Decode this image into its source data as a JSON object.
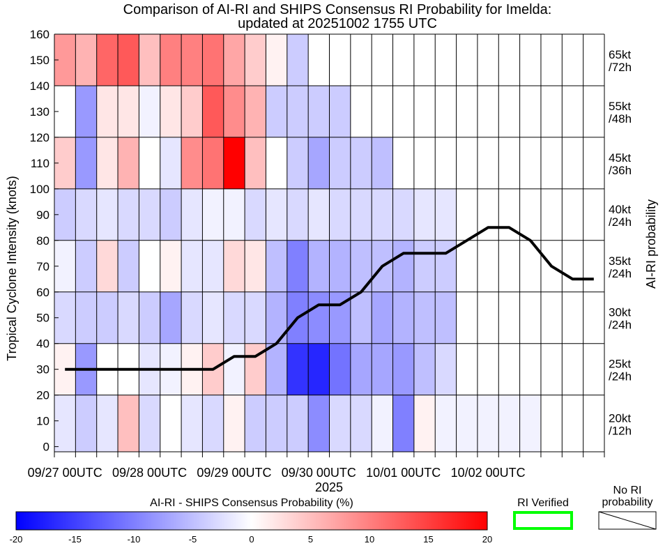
{
  "chart_data": {
    "type": "heatmap",
    "title": "Comparison of AI-RI and SHIPS Consensus RI Probability for Imelda:",
    "subtitle": "updated at 20251002 1755 UTC",
    "ylabel": "Tropical Cyclone Intensity (knots)",
    "xlabel": "2025",
    "right_label": "AI-RI probability",
    "ylim": [
      0,
      160
    ],
    "yticks": [
      0,
      10,
      20,
      30,
      40,
      50,
      60,
      70,
      80,
      90,
      100,
      110,
      120,
      130,
      140,
      150,
      160
    ],
    "xtick_labels": [
      "09/27 00UTC",
      "09/28 00UTC",
      "09/29 00UTC",
      "09/30 00UTC",
      "10/01 00UTC",
      "10/02 00UTC"
    ],
    "n_times": 26,
    "bands": [
      {
        "label": "20kt\n/12h",
        "ymin": -2,
        "ymax": 20
      },
      {
        "label": "25kt\n/24h",
        "ymin": 20,
        "ymax": 40
      },
      {
        "label": "30kt\n/24h",
        "ymin": 40,
        "ymax": 60
      },
      {
        "label": "35kt\n/24h",
        "ymin": 60,
        "ymax": 80
      },
      {
        "label": "40kt\n/24h",
        "ymin": 80,
        "ymax": 100
      },
      {
        "label": "45kt\n/36h",
        "ymin": 100,
        "ymax": 120
      },
      {
        "label": "55kt\n/48h",
        "ymin": 120,
        "ymax": 140
      },
      {
        "label": "65kt\n/72h",
        "ymin": 140,
        "ymax": 160
      }
    ],
    "probability_diff": [
      [
        -2,
        -4,
        -2,
        5,
        -3,
        0,
        -2,
        -3,
        1,
        -4,
        -4,
        -4,
        -9,
        -3,
        -3,
        -1,
        -10,
        1,
        -1,
        -1,
        -1,
        -1,
        -1,
        null,
        null,
        null
      ],
      [
        1,
        -8,
        0,
        0,
        -2,
        -1,
        1,
        4,
        -1,
        4,
        -6,
        -16,
        -17,
        -11,
        -7,
        -7,
        -8,
        -5,
        -3,
        null,
        null,
        null,
        null,
        null,
        null,
        null
      ],
      [
        -3,
        -4,
        -4,
        -3,
        -4,
        -7,
        -3,
        -2,
        -3,
        -3,
        -6,
        -10,
        -9,
        -8,
        -5,
        -7,
        -6,
        -5,
        -5,
        null,
        null,
        null,
        null,
        null,
        null,
        null
      ],
      [
        -1,
        -4,
        3,
        -4,
        0,
        1,
        -2,
        -2,
        3,
        2,
        -5,
        -10,
        -6,
        -6,
        -5,
        -5,
        -6,
        -4,
        -4,
        null,
        null,
        null,
        null,
        null,
        null,
        null
      ],
      [
        -4,
        -3,
        -2,
        -3,
        -3,
        -4,
        -2,
        -1,
        -1,
        -3,
        -2,
        -3,
        -2,
        -3,
        -3,
        -3,
        -3,
        -2,
        -2,
        null,
        null,
        null,
        null,
        null,
        null,
        null
      ],
      [
        4,
        -8,
        2,
        6,
        0,
        -2,
        9,
        11,
        20,
        5,
        0,
        -4,
        -7,
        -4,
        -4,
        -5,
        null,
        null,
        null,
        null,
        null,
        null,
        null,
        null,
        null,
        null
      ],
      [
        0,
        -8,
        2,
        2,
        -1,
        2,
        4,
        13,
        9,
        6,
        -4,
        -4,
        -4,
        -4,
        null,
        null,
        null,
        null,
        null,
        null,
        null,
        null,
        null,
        null,
        null,
        null
      ],
      [
        8,
        6,
        12,
        13,
        5,
        10,
        10,
        11,
        7,
        4,
        1,
        -4,
        null,
        null,
        null,
        null,
        null,
        null,
        null,
        null,
        null,
        null,
        null,
        null,
        null,
        null
      ]
    ],
    "intensity_line": {
      "x": [
        0.5,
        1.5,
        2.5,
        3.5,
        4.5,
        5.5,
        6.5,
        7.5,
        8.5,
        9.5,
        10.5,
        11.5,
        12.5,
        13.5,
        14.5,
        15.5,
        16.5,
        17.5,
        18.5,
        19.5,
        20.5,
        21.5,
        22.5,
        23.5,
        24.5,
        25.5
      ],
      "y": [
        30,
        30,
        30,
        30,
        30,
        30,
        30,
        30,
        35,
        35,
        40,
        50,
        55,
        55,
        60,
        70,
        75,
        75,
        75,
        80,
        85,
        85,
        80,
        70,
        65,
        65
      ]
    },
    "colorbar": {
      "label": "AI-RI - SHIPS Consensus Probability (%)",
      "range": [
        -20,
        20
      ],
      "tick_labels": [
        "-20",
        "-15",
        "-10",
        "-5",
        "0",
        "5",
        "10",
        "15",
        "20"
      ],
      "colors": {
        "low": "#0000ff",
        "mid": "#ffffff",
        "high": "#ff0000"
      }
    },
    "legend_ri_verified": {
      "label": "RI Verified",
      "color": "#00ff00"
    },
    "legend_no_ri": {
      "label_line1": "No RI",
      "label_line2": "probability"
    }
  }
}
